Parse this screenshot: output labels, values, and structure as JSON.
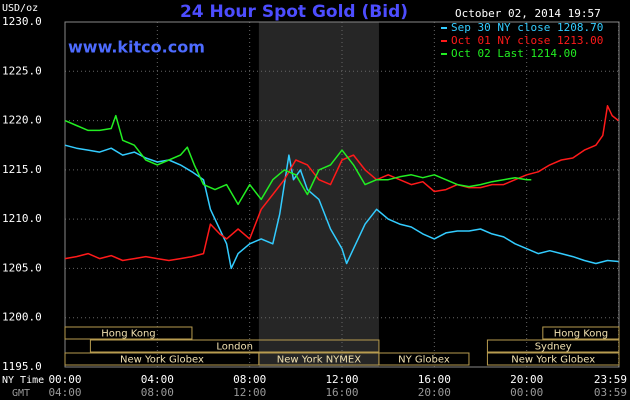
{
  "chart_data": {
    "type": "line",
    "title": "24 Hour Spot Gold (Bid)",
    "timestamp": "October 02, 2014 19:57",
    "source": "www.kitco.com",
    "y_label": "USD/oz",
    "x_label": "NY Time",
    "x2_label": "GMT",
    "xlim": [
      0,
      24
    ],
    "xticks": [
      {
        "value": 0,
        "label": "00:00"
      },
      {
        "value": 4,
        "label": "04:00"
      },
      {
        "value": 8,
        "label": "08:00"
      },
      {
        "value": 12,
        "label": "12:00"
      },
      {
        "value": 16,
        "label": "16:00"
      },
      {
        "value": 20,
        "label": "20:00"
      },
      {
        "value": 23.983,
        "label": "23:59"
      }
    ],
    "gmt_labels": [
      "04:00",
      "08:00",
      "12:00",
      "16:00",
      "20:00",
      "00:00",
      "03:59"
    ],
    "ylim": [
      1195,
      1230
    ],
    "yticks": [
      {
        "value": 1195,
        "label": "1195.0"
      },
      {
        "value": 1200,
        "label": "1200.0"
      },
      {
        "value": 1205,
        "label": "1205.0"
      },
      {
        "value": 1210,
        "label": "1210.0"
      },
      {
        "value": 1215,
        "label": "1215.0"
      },
      {
        "value": 1220,
        "label": "1220.0"
      },
      {
        "value": 1225,
        "label": "1225.0"
      },
      {
        "value": 1230,
        "label": "1230.0"
      }
    ],
    "grid": true,
    "sessions": [
      "Hong Kong",
      "Hong Kong",
      "London",
      "Sydney",
      "New York Globex",
      "New York NYMEX",
      "NY Globex",
      "New York Globex"
    ],
    "series": [
      {
        "name": "Sep 30 NY close 1208.70",
        "color": "#33ccff",
        "x": [
          0,
          0.5,
          1,
          1.5,
          2,
          2.5,
          3,
          3.5,
          4,
          4.5,
          5,
          5.5,
          6,
          6.3,
          6.6,
          7,
          7.2,
          7.5,
          8,
          8.5,
          9,
          9.3,
          9.7,
          9.9,
          10.2,
          10.5,
          11,
          11.5,
          12,
          12.2,
          12.5,
          13,
          13.5,
          14,
          14.5,
          15,
          15.5,
          16,
          16.5,
          17,
          17.5,
          18,
          18.5,
          19,
          19.5,
          20,
          20.5,
          21,
          21.5,
          22,
          22.5,
          23,
          23.5,
          23.98
        ],
        "values": [
          1217.5,
          1217.2,
          1217,
          1216.8,
          1217.2,
          1216.5,
          1216.8,
          1216.2,
          1215.8,
          1216,
          1215.5,
          1214.8,
          1214,
          1211,
          1209.5,
          1207.5,
          1205,
          1206.5,
          1207.5,
          1208,
          1207.5,
          1210.5,
          1216.5,
          1214,
          1215,
          1213,
          1212,
          1209,
          1207,
          1205.5,
          1207,
          1209.5,
          1211,
          1210,
          1209.5,
          1209.2,
          1208.5,
          1208,
          1208.6,
          1208.8,
          1208.8,
          1209,
          1208.5,
          1208.2,
          1207.5,
          1207,
          1206.5,
          1206.8,
          1206.5,
          1206.2,
          1205.8,
          1205.5,
          1205.8,
          1205.7
        ]
      },
      {
        "name": "Oct 01 NY close 1213.00",
        "color": "#ff1a1a",
        "x": [
          0,
          0.5,
          1,
          1.5,
          2,
          2.5,
          3,
          3.5,
          4,
          4.5,
          5,
          5.5,
          6,
          6.3,
          6.7,
          7,
          7.5,
          8,
          8.5,
          9,
          9.5,
          10,
          10.5,
          11,
          11.5,
          12,
          12.5,
          13,
          13.5,
          14,
          14.5,
          15,
          15.5,
          16,
          16.5,
          17,
          17.5,
          18,
          18.5,
          19,
          19.5,
          20,
          20.5,
          21,
          21.5,
          22,
          22.5,
          23,
          23.3,
          23.5,
          23.7,
          23.98
        ],
        "values": [
          1206,
          1206.2,
          1206.5,
          1206,
          1206.3,
          1205.8,
          1206,
          1206.2,
          1206,
          1205.8,
          1206,
          1206.2,
          1206.5,
          1209.5,
          1208.5,
          1208,
          1209,
          1208,
          1211,
          1212.5,
          1214,
          1216,
          1215.5,
          1214,
          1213.5,
          1216,
          1216.5,
          1215,
          1214,
          1214.5,
          1214,
          1213.5,
          1213.8,
          1212.8,
          1213,
          1213.5,
          1213.2,
          1213.2,
          1213.5,
          1213.5,
          1214,
          1214.5,
          1214.8,
          1215.5,
          1216,
          1216.2,
          1217,
          1217.5,
          1218.5,
          1221.5,
          1220.5,
          1220
        ]
      },
      {
        "name": "Oct 02 Last 1214.00",
        "color": "#22ee22",
        "x": [
          0,
          0.5,
          1,
          1.5,
          2,
          2.2,
          2.5,
          3,
          3.5,
          4,
          4.5,
          5,
          5.3,
          5.6,
          6,
          6.5,
          7,
          7.5,
          8,
          8.5,
          9,
          9.5,
          10,
          10.5,
          11,
          11.5,
          12,
          12.5,
          13,
          13.5,
          14,
          14.5,
          15,
          15.5,
          16,
          16.5,
          17,
          17.5,
          18,
          18.5,
          19,
          19.5,
          20,
          20.2
        ],
        "values": [
          1220,
          1219.5,
          1219,
          1219,
          1219.2,
          1220.5,
          1218,
          1217.5,
          1216,
          1215.5,
          1216,
          1216.5,
          1217.3,
          1215.5,
          1213.5,
          1213,
          1213.5,
          1211.5,
          1213.5,
          1212,
          1214,
          1215,
          1214.5,
          1212.5,
          1215,
          1215.5,
          1217,
          1215.5,
          1213.5,
          1214,
          1214,
          1214.3,
          1214.5,
          1214.2,
          1214.5,
          1214,
          1213.5,
          1213.3,
          1213.5,
          1213.8,
          1214,
          1214.2,
          1214,
          1214
        ]
      }
    ]
  }
}
